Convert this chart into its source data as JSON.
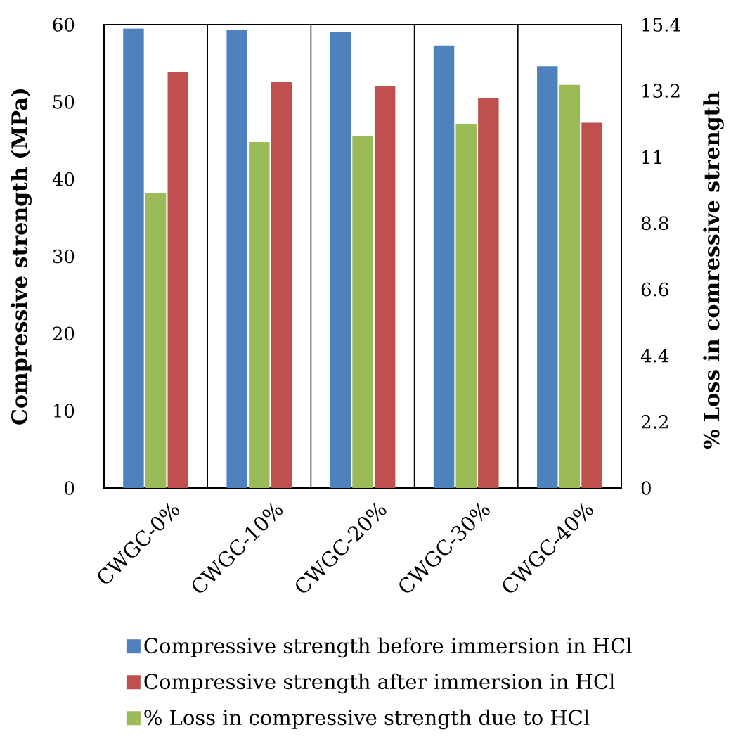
{
  "chart_data": {
    "type": "bar",
    "categories": [
      "CWGC-0%",
      "CWGC-10%",
      "CWGC-20%",
      "CWGC-30%",
      "CWGC-40%"
    ],
    "ylabel": "Compressive strength (MPa)",
    "y2label": "% Loss in comressive strength",
    "series": [
      {
        "name": "Compressive strength before immersion in HCl",
        "color": "#4f81bd",
        "values": [
          59.5,
          59.3,
          59.0,
          57.3,
          54.6
        ]
      },
      {
        "name": "Compressive strength after immersion in HCl",
        "color": "#c0504d",
        "values": [
          53.8,
          52.6,
          52.0,
          50.5,
          47.3
        ]
      },
      {
        "name": "% Loss in compressive strength due to HCl",
        "color": "#9bbb59",
        "values": [
          9.8,
          11.5,
          11.7,
          12.1,
          13.4
        ],
        "axis": "y2"
      }
    ],
    "ylim": [
      0,
      60
    ],
    "yticks": [
      0,
      10,
      20,
      30,
      40,
      50,
      60
    ],
    "y2lim": [
      0,
      15.4
    ],
    "y2ticks": [
      0,
      2.2,
      4.4,
      6.6,
      8.8,
      11,
      13.2,
      15.4
    ],
    "grid": "x",
    "legend": "bottom"
  }
}
